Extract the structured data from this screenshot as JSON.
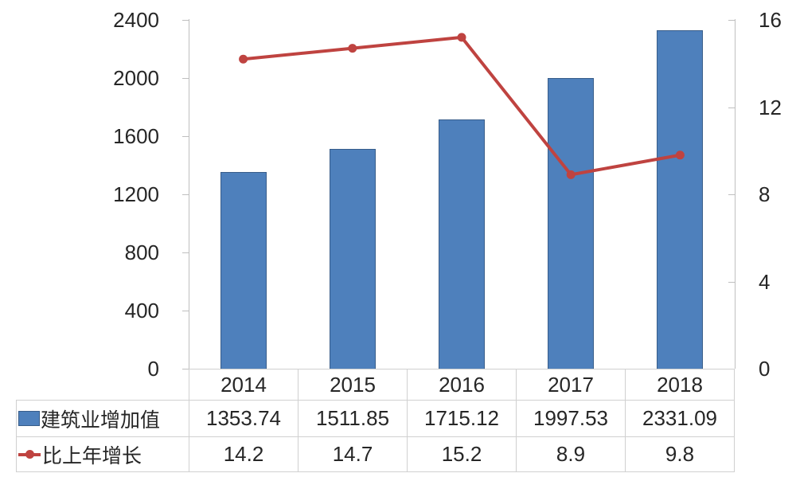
{
  "chart_data": {
    "type": "bar",
    "subtype": "combo-bar-line",
    "title": "",
    "categories": [
      "2014",
      "2015",
      "2016",
      "2017",
      "2018"
    ],
    "series": [
      {
        "name": "建筑业增加值",
        "chart": "bar",
        "axis": "left",
        "values": [
          1353.74,
          1511.85,
          1715.12,
          1997.53,
          2331.09
        ]
      },
      {
        "name": "比上年增长",
        "chart": "line",
        "axis": "right",
        "values": [
          14.2,
          14.7,
          15.2,
          8.9,
          9.8
        ]
      }
    ],
    "left_axis": {
      "min": 0,
      "max": 2400,
      "tick_labels": [
        "2400",
        "2000",
        "1600",
        "1200",
        "800",
        "400",
        "0"
      ]
    },
    "right_axis": {
      "min": 0,
      "max": 16,
      "tick_labels": [
        "16",
        "12",
        "8",
        "4",
        "0"
      ]
    },
    "grid": false,
    "legend_position": "left-of-data-table",
    "data_table_shown": true
  },
  "colors": {
    "bar_fill": "#4E80BC",
    "bar_border": "#385D8A",
    "line": "#BF4340",
    "axis_line": "#BFBFBF",
    "table_border": "#D0D0D0",
    "text": "#262626",
    "background": "#FFFFFF"
  }
}
